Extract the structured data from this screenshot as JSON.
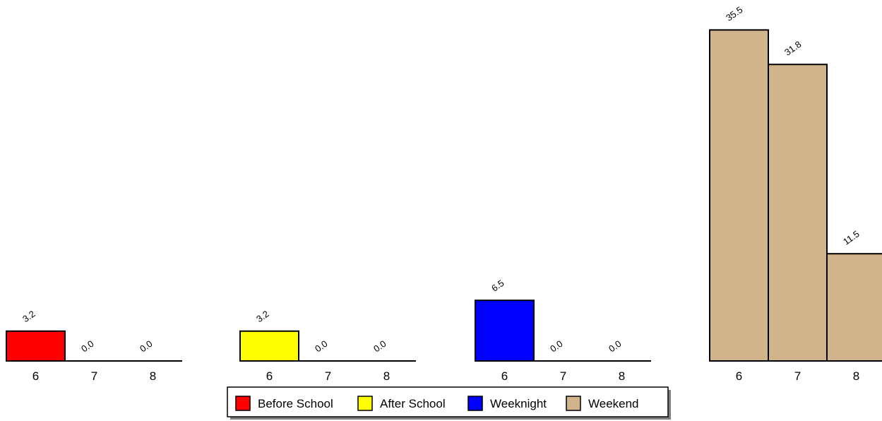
{
  "chart_data": {
    "type": "bar",
    "title": "",
    "xlabel": "",
    "ylabel": "",
    "ylim": [
      0,
      35.5
    ],
    "categories": [
      "6",
      "7",
      "8"
    ],
    "series": [
      {
        "name": "Before School",
        "values": [
          3.2,
          0.0,
          0.0
        ],
        "labels": [
          "3.2",
          "0.0",
          "0.0"
        ],
        "color": "#ff0000"
      },
      {
        "name": "After School",
        "values": [
          3.2,
          0.0,
          0.0
        ],
        "labels": [
          "3.2",
          "0.0",
          "0.0"
        ],
        "color": "#ffff00"
      },
      {
        "name": "Weeknight",
        "values": [
          6.5,
          0.0,
          0.0
        ],
        "labels": [
          "6.5",
          "0.0",
          "0.0"
        ],
        "color": "#0000ff"
      },
      {
        "name": "Weekend",
        "values": [
          35.5,
          31.8,
          11.5
        ],
        "labels": [
          "35.5",
          "31.8",
          "11.5"
        ],
        "color": "#d2b48c"
      }
    ],
    "grid": false,
    "legend_position": "bottom-center",
    "panels": "one panel per series, bars per category"
  }
}
